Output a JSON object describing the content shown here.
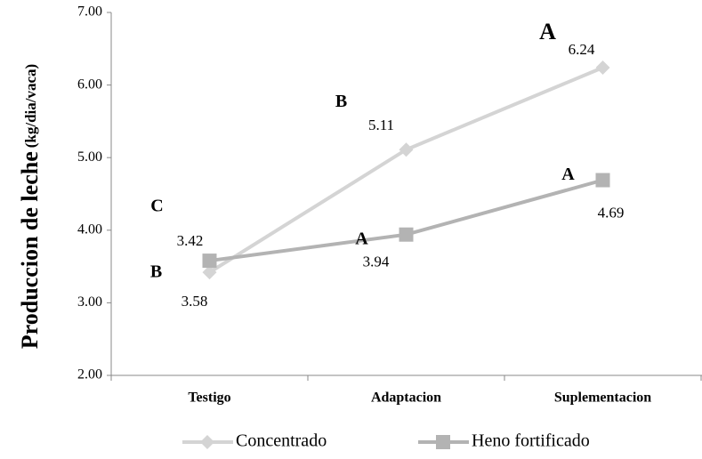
{
  "chart_data": {
    "type": "line",
    "y_label": "Produccion de leche",
    "y_label_unit": "(kg/dia/vaca)",
    "categories": [
      "Testigo",
      "Adaptacion",
      "Suplementacion"
    ],
    "series": [
      {
        "name": "Concentrado",
        "color": "#d4d4d4",
        "marker": "diamond",
        "values": [
          3.42,
          5.11,
          6.24
        ],
        "significance": [
          "C",
          "B",
          "A"
        ]
      },
      {
        "name": "Heno fortificado",
        "color": "#b3b3b3",
        "marker": "square",
        "values": [
          3.58,
          3.94,
          4.69
        ],
        "significance": [
          "B",
          "A",
          "A"
        ]
      }
    ],
    "ylim": [
      2,
      7
    ],
    "yticks": [
      {
        "value": 2,
        "label": "2.00"
      },
      {
        "value": 3,
        "label": "3.00"
      },
      {
        "value": 4,
        "label": "4.00"
      },
      {
        "value": 5,
        "label": "5.00"
      },
      {
        "value": 6,
        "label": "6.00"
      },
      {
        "value": 7,
        "label": "7.00"
      }
    ],
    "legend": "bottom"
  }
}
